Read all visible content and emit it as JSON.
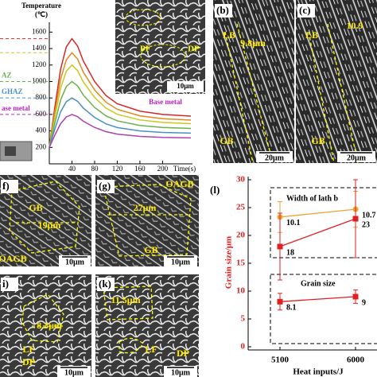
{
  "thermal_chart": {
    "type": "line",
    "y_label": [
      "Temperature",
      "(℃)"
    ],
    "x_label": "Time(s)",
    "x": [
      0,
      10,
      20,
      30,
      40,
      50,
      60,
      80,
      100,
      120,
      160,
      200,
      250
    ],
    "xlim": [
      0,
      250
    ],
    "xticks": [
      40,
      80,
      120,
      160,
      200
    ],
    "ylim": [
      0,
      1700
    ],
    "yticks": [
      200,
      400,
      600,
      800,
      1000,
      1200,
      1400,
      1600
    ],
    "series": [
      {
        "color": "#d62728",
        "values": [
          200,
          700,
          1150,
          1420,
          1520,
          1430,
          1250,
          1000,
          830,
          730,
          640,
          600,
          580
        ]
      },
      {
        "color": "#e08a1c",
        "values": [
          200,
          636,
          1028,
          1263,
          1350,
          1272,
          1114,
          897,
          749,
          662,
          583,
          548,
          531
        ]
      },
      {
        "color": "#c8c820",
        "values": [
          200,
          579,
          920,
          1124,
          1200,
          1132,
          995,
          806,
          677,
          602,
          533,
          503,
          488
        ]
      },
      {
        "color": "#6ab04c",
        "values": [
          200,
          503,
          776,
          939,
          1000,
          946,
          836,
          685,
          582,
          522,
          466,
          442,
          430
        ]
      },
      {
        "color": "#4a90c8",
        "values": [
          200,
          427,
          632,
          754,
          800,
          759,
          677,
          564,
          486,
          441,
          400,
          382,
          373
        ]
      },
      {
        "color": "#b040b0",
        "values": [
          200,
          352,
          488,
          570,
          600,
          573,
          518,
          442,
          391,
          361,
          333,
          321,
          315
        ]
      }
    ],
    "ref_lines": [
      {
        "value": 1520,
        "color": "#d62728"
      },
      {
        "value": 1350,
        "color": "#c8c820"
      },
      {
        "value": 1000,
        "color": "#6ab04c",
        "label": "AZ"
      },
      {
        "value": 800,
        "color": "#4a90c8",
        "label": "GHAZ"
      },
      {
        "value": 600,
        "color": "#c020c0",
        "label": "ase metal"
      }
    ]
  },
  "inset": {
    "labels": [
      "PF",
      "DP"
    ],
    "scale": "10μm",
    "caption": "Base metal"
  },
  "panels": [
    {
      "label": "(b)",
      "annotations": [
        "LB",
        "9.8μm",
        "GB"
      ],
      "scale": "20μm"
    },
    {
      "label": "(c)",
      "annotations": [
        "LB",
        "10.9",
        "GB"
      ],
      "scale": "20μm"
    },
    {
      "label": "f)",
      "annotations": [
        "GB",
        "19μm",
        "OAGB"
      ],
      "scale": "10μm"
    },
    {
      "label": "(g)",
      "annotations": [
        "OAGB",
        "27μm",
        "GB"
      ],
      "scale": "10μm"
    },
    {
      "label": "i)",
      "annotations": [
        "8.3μm",
        "LF",
        "DP"
      ],
      "scale": "10μm"
    },
    {
      "label": "(k)",
      "annotations": [
        "11.5μm",
        "LF",
        "DP"
      ],
      "scale": "10μm"
    }
  ],
  "grain_chart": {
    "type": "line",
    "label": "(l)",
    "y_label": "Grain size/μm",
    "x_label": "Heat inputs/J",
    "categories": [
      "5100",
      "6000"
    ],
    "ylim": [
      0,
      30
    ],
    "yticks": [
      0,
      5,
      10,
      15,
      20,
      25,
      30
    ],
    "y2lim": [
      0,
      13
    ],
    "series": [
      {
        "name": "Width of lath b",
        "color": "#f0a030",
        "axis": "y2",
        "values": [
          10.1,
          10.7
        ],
        "errors": [
          1.2,
          1.4
        ]
      },
      {
        "name": "Grain size",
        "color": "#e02020",
        "values": [
          18,
          23
        ],
        "errors": [
          6,
          7
        ]
      },
      {
        "color": "#e02020",
        "values": [
          8.1,
          9
        ],
        "errors": [
          1.5,
          1.2
        ]
      }
    ]
  }
}
